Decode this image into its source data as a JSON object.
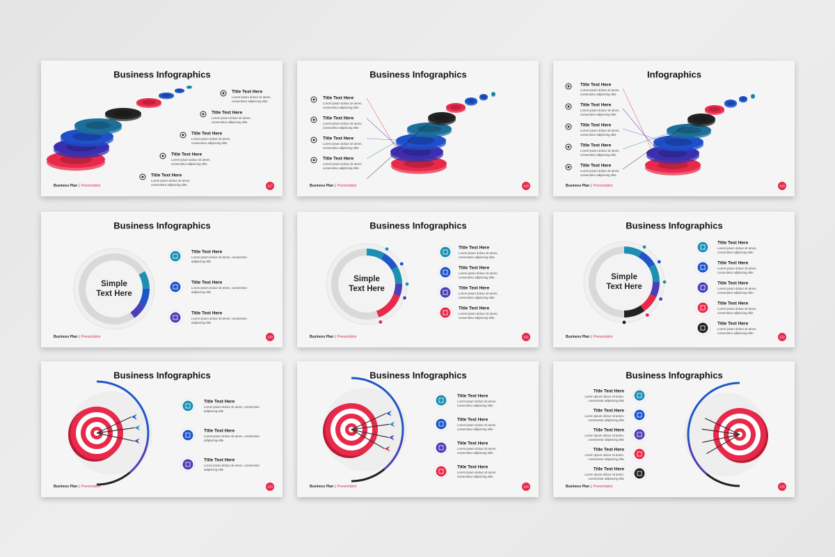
{
  "slides": [
    {
      "title": "Business Infographics",
      "items": [
        {
          "title": "Title Text Here",
          "body": [
            "Lorem ipsum dolour sit amen,",
            "consectetur adipiscing elite"
          ]
        },
        {
          "title": "Title Text Here",
          "body": [
            "Lorem ipsum dolour sit amen,",
            "consectetur adipiscing elite"
          ]
        },
        {
          "title": "Title Text Here",
          "body": [
            "Lorem ipsum dolour sit amen,",
            "consectetur adipiscing elite"
          ]
        },
        {
          "title": "Title Text Here",
          "body": [
            "Lorem ipsum dolour sit amen,",
            "consectetur adipiscing elite"
          ]
        },
        {
          "title": "Title Text Here",
          "body": [
            "Lorem ipsum dolour sit amen,",
            "consectetur adipiscing elite"
          ]
        }
      ],
      "footer": {
        "brand": "Business Plan",
        "separator": "|",
        "label": "Presentation"
      },
      "page": "127"
    },
    {
      "title": "Business Infographics",
      "items": [
        {
          "title": "Title Text Here",
          "body": [
            "Lorem ipsum dolour sit amen,",
            "consectetur adipiscing elite"
          ]
        },
        {
          "title": "Title Text Here",
          "body": [
            "Lorem ipsum dolour sit amen,",
            "consectetur adipiscing elite"
          ]
        },
        {
          "title": "Title Text Here",
          "body": [
            "Lorem ipsum dolour sit amen,",
            "consectetur adipiscing elite"
          ]
        },
        {
          "title": "Title Text Here",
          "body": [
            "Lorem ipsum dolour sit amen,",
            "consectetur adipiscing elite"
          ]
        }
      ],
      "footer": {
        "brand": "Business Plan",
        "separator": "|",
        "label": "Presentation"
      },
      "page": "128"
    },
    {
      "title": "Infographics",
      "items": [
        {
          "title": "Title Text Here",
          "body": [
            "Lorem ipsum dolour sit amen,",
            "consectetur adipiscing elite"
          ]
        },
        {
          "title": "Title Text Here",
          "body": [
            "Lorem ipsum dolour sit amen,",
            "consectetur adipiscing elite"
          ]
        },
        {
          "title": "Title Text Here",
          "body": [
            "Lorem ipsum dolour sit amen,",
            "consectetur adipiscing elite"
          ]
        },
        {
          "title": "Title Text Here",
          "body": [
            "Lorem ipsum dolour sit amen,",
            "consectetur adipiscing elite"
          ]
        },
        {
          "title": "Title Text Here",
          "body": [
            "Lorem ipsum dolour sit amen,",
            "consectetur adipiscing elite"
          ]
        }
      ],
      "footer": {
        "brand": "Business Plan",
        "separator": "|",
        "label": "Presentation"
      },
      "page": "129"
    },
    {
      "title": "Business Infographics",
      "center": [
        "Simple",
        "Text Here"
      ],
      "items": [
        {
          "title": "Title Text Here",
          "body": [
            "Lorem ipsum dolour sit amen, consectetur",
            "adipiscing elite"
          ]
        },
        {
          "title": "Title Text Here",
          "body": [
            "Lorem ipsum dolour sit amen, consectetur",
            "adipiscing elite"
          ]
        },
        {
          "title": "Title Text Here",
          "body": [
            "Lorem ipsum dolour sit amen, consectetur",
            "adipiscing elite"
          ]
        }
      ],
      "footer": {
        "brand": "Business Plan",
        "separator": "|",
        "label": "Presentation"
      },
      "page": "130"
    },
    {
      "title": "Business Infographics",
      "center": [
        "Simple",
        "Text Here"
      ],
      "items": [
        {
          "title": "Title Text Here",
          "body": [
            "Lorem ipsum dolour sit amen,",
            "consectetur adipiscing elite"
          ]
        },
        {
          "title": "Title Text Here",
          "body": [
            "Lorem ipsum dolour sit amen,",
            "consectetur adipiscing elite"
          ]
        },
        {
          "title": "Title Text Here",
          "body": [
            "Lorem ipsum dolour sit amen,",
            "consectetur adipiscing elite"
          ]
        },
        {
          "title": "Title Text Here",
          "body": [
            "Lorem ipsum dolour sit amen,",
            "consectetur adipiscing elite"
          ]
        }
      ],
      "footer": {
        "brand": "Business Plan",
        "separator": "|",
        "label": "Presentation"
      },
      "page": "131"
    },
    {
      "title": "Business Infographics",
      "center": [
        "Simple",
        "Text Here"
      ],
      "items": [
        {
          "title": "Title Text Here",
          "body": [
            "Lorem ipsum dolour sit amen,",
            "consectetur adipiscing elite"
          ]
        },
        {
          "title": "Title Text Here",
          "body": [
            "Lorem ipsum dolour sit amen,",
            "consectetur adipiscing elite"
          ]
        },
        {
          "title": "Title Text Here",
          "body": [
            "Lorem ipsum dolour sit amen,",
            "consectetur adipiscing elite"
          ]
        },
        {
          "title": "Title Text Here",
          "body": [
            "Lorem ipsum dolour sit amen,",
            "consectetur adipiscing elite"
          ]
        },
        {
          "title": "Title Text Here",
          "body": [
            "Lorem ipsum dolour sit amen,",
            "consectetur adipiscing elite"
          ]
        }
      ],
      "footer": {
        "brand": "Business Plan",
        "separator": "|",
        "label": "Presentation"
      },
      "page": "132"
    },
    {
      "title": "Business Infographics",
      "items": [
        {
          "title": "Title Text Here",
          "body": [
            "Lorem ipsum dolour sit amen, consectetur",
            "adipiscing elite"
          ]
        },
        {
          "title": "Title Text Here",
          "body": [
            "Lorem ipsum dolour sit amen, consectetur",
            "adipiscing elite"
          ]
        },
        {
          "title": "Title Text Here",
          "body": [
            "Lorem ipsum dolour sit amen, consectetur",
            "adipiscing elite"
          ]
        }
      ],
      "footer": {
        "brand": "Business Plan",
        "separator": "|",
        "label": "Presentation"
      },
      "page": "133"
    },
    {
      "title": "Business Infographics",
      "items": [
        {
          "title": "Title Text Here",
          "body": [
            "Lorem ipsum dolour sit amen,",
            "consectetur adipiscing elite"
          ]
        },
        {
          "title": "Title Text Here",
          "body": [
            "Lorem ipsum dolour sit amen,",
            "consectetur adipiscing elite"
          ]
        },
        {
          "title": "Title Text Here",
          "body": [
            "Lorem ipsum dolour sit amen,",
            "consectetur adipiscing elite"
          ]
        },
        {
          "title": "Title Text Here",
          "body": [
            "Lorem ipsum dolour sit amen,",
            "consectetur adipiscing elite"
          ]
        }
      ],
      "footer": {
        "brand": "Business Plan",
        "separator": "|",
        "label": "Presentation"
      },
      "page": "134"
    },
    {
      "title": "Business Infographics",
      "items": [
        {
          "title": "Title Text Here",
          "body": [
            "Lorem ipsum dolour sit amen,",
            "consectetur adipiscing elite"
          ]
        },
        {
          "title": "Title Text Here",
          "body": [
            "Lorem ipsum dolour sit amen,",
            "consectetur adipiscing elite"
          ]
        },
        {
          "title": "Title Text Here",
          "body": [
            "Lorem ipsum dolour sit amen,",
            "consectetur adipiscing elite"
          ]
        },
        {
          "title": "Title Text Here",
          "body": [
            "Lorem ipsum dolour sit amen,",
            "consectetur adipiscing elite"
          ]
        },
        {
          "title": "Title Text Here",
          "body": [
            "Lorem ipsum dolour sit amen,",
            "consectetur adipiscing elite"
          ]
        }
      ],
      "footer": {
        "brand": "Business Plan",
        "separator": "|",
        "label": "Presentation"
      },
      "page": "135"
    }
  ]
}
